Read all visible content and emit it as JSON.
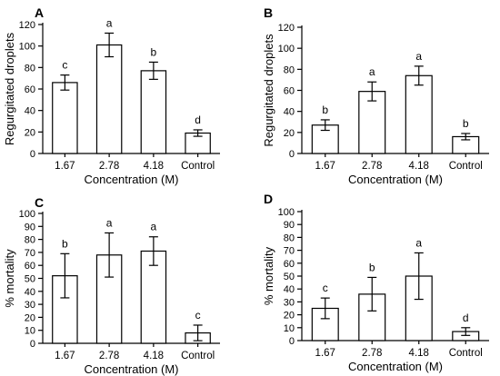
{
  "chart_data": [
    {
      "panel_label": "A",
      "type": "bar",
      "categories": [
        "1.67",
        "2.78",
        "4.18",
        "Control"
      ],
      "values": [
        66,
        101,
        77,
        19
      ],
      "errors": [
        7,
        11,
        8,
        3
      ],
      "significance": [
        "c",
        "a",
        "b",
        "d"
      ],
      "xlabel": "Concentration (M)",
      "ylabel": "Regurgitated droplets",
      "ylim": [
        0,
        120
      ],
      "yticks": [
        0,
        20,
        40,
        60,
        80,
        100,
        120
      ]
    },
    {
      "panel_label": "B",
      "type": "bar",
      "categories": [
        "1.67",
        "2.78",
        "4.18",
        "Control"
      ],
      "values": [
        27,
        59,
        74,
        16
      ],
      "errors": [
        5,
        9,
        9,
        3
      ],
      "significance": [
        "b",
        "a",
        "a",
        "b"
      ],
      "xlabel": "Concentration (M)",
      "ylabel": "Regurgitated droplets",
      "ylim": [
        0,
        120
      ],
      "yticks": [
        0,
        20,
        40,
        60,
        80,
        100,
        120
      ]
    },
    {
      "panel_label": "C",
      "type": "bar",
      "categories": [
        "1.67",
        "2.78",
        "4.18",
        "Control"
      ],
      "values": [
        52,
        68,
        71,
        8
      ],
      "errors": [
        17,
        17,
        11,
        6
      ],
      "significance": [
        "b",
        "a",
        "a",
        "c"
      ],
      "xlabel": "Concentration (M)",
      "ylabel": "% mortality",
      "ylim": [
        0,
        100
      ],
      "yticks": [
        0,
        10,
        20,
        30,
        40,
        50,
        60,
        70,
        80,
        90,
        100
      ]
    },
    {
      "panel_label": "D",
      "type": "bar",
      "categories": [
        "1.67",
        "2.78",
        "4.18",
        "Control"
      ],
      "values": [
        25,
        36,
        50,
        7
      ],
      "errors": [
        8,
        13,
        18,
        3
      ],
      "significance": [
        "c",
        "b",
        "a",
        "d"
      ],
      "xlabel": "Concentration (M)",
      "ylabel": "% mortality",
      "ylim": [
        0,
        100
      ],
      "yticks": [
        0,
        10,
        20,
        30,
        40,
        50,
        60,
        70,
        80,
        90,
        100
      ]
    }
  ]
}
